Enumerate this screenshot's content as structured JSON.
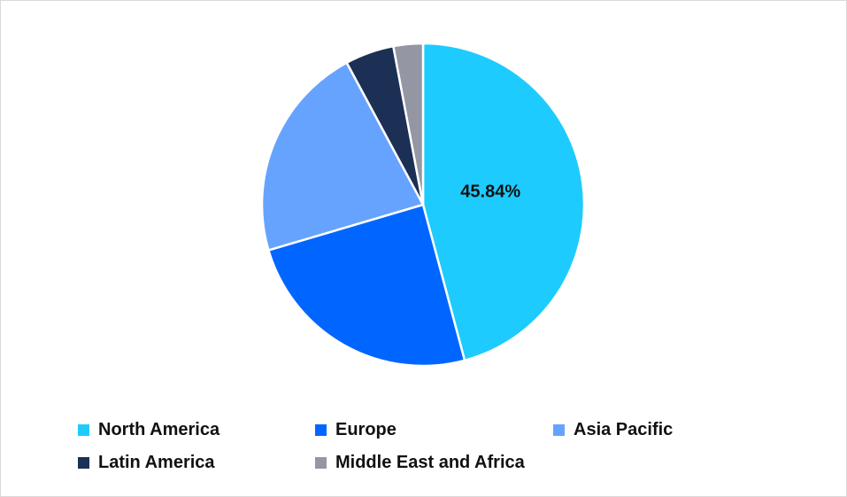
{
  "chart_data": {
    "type": "pie",
    "title": "",
    "categories": [
      "North America",
      "Europe",
      "Asia Pacific",
      "Latin America",
      "Middle East and Africa"
    ],
    "values": [
      45.84,
      24.6,
      21.7,
      4.9,
      2.96
    ],
    "colors": [
      "#1ECBFE",
      "#0066FF",
      "#66A3FF",
      "#1C2F54",
      "#9497A3"
    ],
    "data_labels": [
      "45.84%",
      "",
      "",
      "",
      ""
    ],
    "legend_position": "bottom"
  }
}
